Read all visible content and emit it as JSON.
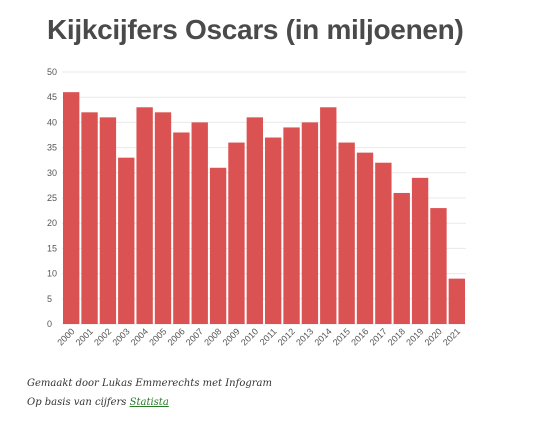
{
  "caption": {
    "line1": "Gemaakt door Lukas Emmerechts met Infogram",
    "line2_prefix": "Op basis van cijfers ",
    "line2_link": "Statista"
  },
  "colors": {
    "bar": "#db5252",
    "grid": "#e9e9e9",
    "title": "#4a4a4a",
    "link": "#2a7a2a"
  },
  "chart_data": {
    "type": "bar",
    "title": "Kijkcijfers Oscars (in miljoenen)",
    "xlabel": "",
    "ylabel": "",
    "ylim": [
      0,
      50
    ],
    "yticks": [
      0,
      5,
      10,
      15,
      20,
      25,
      30,
      35,
      40,
      45,
      50
    ],
    "grid": true,
    "categories": [
      "2000",
      "2001",
      "2002",
      "2003",
      "2004",
      "2005",
      "2006",
      "2007",
      "2008",
      "2009",
      "2010",
      "2011",
      "2012",
      "2013",
      "2014",
      "2015",
      "2016",
      "2017",
      "2018",
      "2019",
      "2020",
      "2021"
    ],
    "values": [
      46,
      42,
      41,
      33,
      43,
      42,
      38,
      40,
      31,
      36,
      41,
      37,
      39,
      40,
      43,
      36,
      34,
      32,
      26,
      29,
      23,
      9
    ]
  }
}
